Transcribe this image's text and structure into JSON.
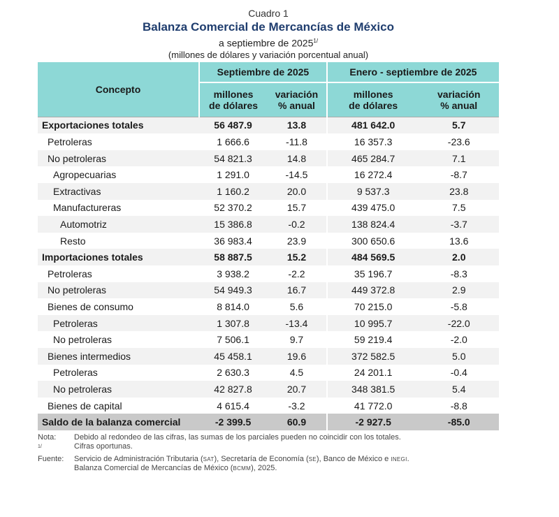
{
  "header": {
    "cuadro": "Cuadro 1",
    "title": "Balanza Comercial de Mercancías de México",
    "subtitle": "a septiembre de 2025",
    "subtitle_sup": "1/",
    "units": "(millones de dólares y variación porcentual anual)"
  },
  "table": {
    "concept_header": "Concepto",
    "period1": "Septiembre de 2025",
    "period2": "Enero - septiembre de 2025",
    "col_millones_1": "millones",
    "col_millones_2": "de dólares",
    "col_variacion_1": "variación",
    "col_variacion_2": "% anual",
    "rows": [
      {
        "label": "Exportaciones totales",
        "sep_m": "56 487.9",
        "sep_v": "13.8",
        "ene_m": "481 642.0",
        "ene_v": "5.7"
      },
      {
        "label": "Petroleras",
        "sep_m": "1 666.6",
        "sep_v": "-11.8",
        "ene_m": "16 357.3",
        "ene_v": "-23.6"
      },
      {
        "label": "No petroleras",
        "sep_m": "54 821.3",
        "sep_v": "14.8",
        "ene_m": "465 284.7",
        "ene_v": "7.1"
      },
      {
        "label": "Agropecuarias",
        "sep_m": "1 291.0",
        "sep_v": "-14.5",
        "ene_m": "16 272.4",
        "ene_v": "-8.7"
      },
      {
        "label": "Extractivas",
        "sep_m": "1 160.2",
        "sep_v": "20.0",
        "ene_m": "9 537.3",
        "ene_v": "23.8"
      },
      {
        "label": "Manufactureras",
        "sep_m": "52 370.2",
        "sep_v": "15.7",
        "ene_m": "439 475.0",
        "ene_v": "7.5"
      },
      {
        "label": "Automotriz",
        "sep_m": "15 386.8",
        "sep_v": "-0.2",
        "ene_m": "138 824.4",
        "ene_v": "-3.7"
      },
      {
        "label": "Resto",
        "sep_m": "36 983.4",
        "sep_v": "23.9",
        "ene_m": "300 650.6",
        "ene_v": "13.6"
      },
      {
        "label": "Importaciones totales",
        "sep_m": "58 887.5",
        "sep_v": "15.2",
        "ene_m": "484 569.5",
        "ene_v": "2.0"
      },
      {
        "label": "Petroleras",
        "sep_m": "3 938.2",
        "sep_v": "-2.2",
        "ene_m": "35 196.7",
        "ene_v": "-8.3"
      },
      {
        "label": "No petroleras",
        "sep_m": "54 949.3",
        "sep_v": "16.7",
        "ene_m": "449 372.8",
        "ene_v": "2.9"
      },
      {
        "label": "Bienes de consumo",
        "sep_m": "8 814.0",
        "sep_v": "5.6",
        "ene_m": "70 215.0",
        "ene_v": "-5.8"
      },
      {
        "label": "Petroleras",
        "sep_m": "1 307.8",
        "sep_v": "-13.4",
        "ene_m": "10 995.7",
        "ene_v": "-22.0"
      },
      {
        "label": "No petroleras",
        "sep_m": "7 506.1",
        "sep_v": "9.7",
        "ene_m": "59 219.4",
        "ene_v": "-2.0"
      },
      {
        "label": "Bienes intermedios",
        "sep_m": "45 458.1",
        "sep_v": "19.6",
        "ene_m": "372 582.5",
        "ene_v": "5.0"
      },
      {
        "label": "Petroleras",
        "sep_m": "2 630.3",
        "sep_v": "4.5",
        "ene_m": "24 201.1",
        "ene_v": "-0.4"
      },
      {
        "label": "No petroleras",
        "sep_m": "42 827.8",
        "sep_v": "20.7",
        "ene_m": "348 381.5",
        "ene_v": "5.4"
      },
      {
        "label": "Bienes de capital",
        "sep_m": "4 615.4",
        "sep_v": "-3.2",
        "ene_m": "41 772.0",
        "ene_v": "-8.8"
      },
      {
        "label": "Saldo de la balanza comercial",
        "sep_m": "-2 399.5",
        "sep_v": "60.9",
        "ene_m": "-2 927.5",
        "ene_v": "-85.0"
      }
    ]
  },
  "notes": {
    "nota_key": "Nota:",
    "nota_text": "Debido al redondeo de las cifras, las sumas de los parciales pueden no coincidir con los totales.",
    "sup_key": "1/",
    "sup_text": "Cifras oportunas.",
    "fuente_key": "Fuente:",
    "fuente_1": "Servicio de Administración Tributaria (",
    "sat": "SAT",
    "fuente_2": "), Secretaría de Economía (",
    "se": "SE",
    "fuente_3": "), Banco de México e ",
    "inegi": "INEGI",
    "fuente_4": ".",
    "fuente_line2a": "Balanza Comercial de Mercancías de México (",
    "bcmm": "BCMM",
    "fuente_line2b": "), 2025."
  }
}
